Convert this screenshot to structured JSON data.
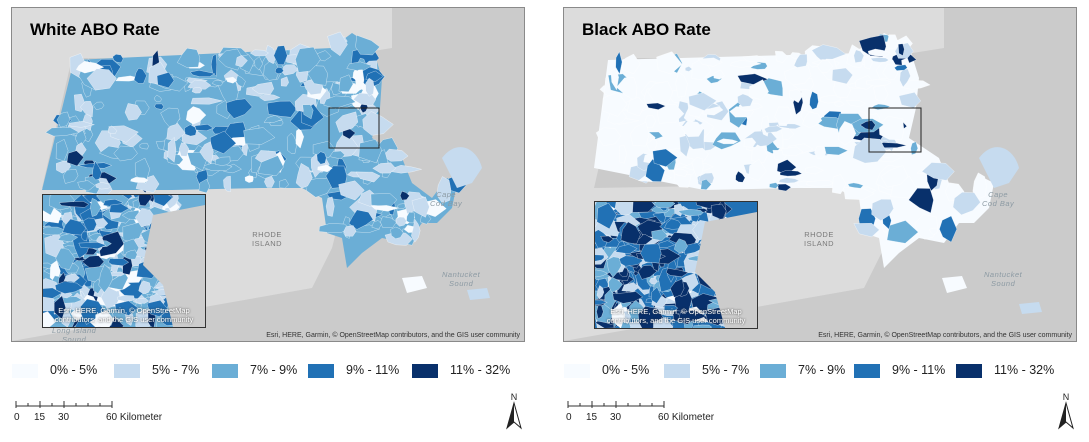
{
  "colors": {
    "c0": "#f7fbff",
    "c1": "#c6dbef",
    "c2": "#6baed6",
    "c3": "#2171b5",
    "c4": "#08306b",
    "background": "#d9d9d9",
    "water": "#c8c8c8"
  },
  "left_map": {
    "title": "White ABO Rate",
    "inset_attribution": "Esri, HERE, Garmin, © OpenStreetMap contributors, and the GIS user community",
    "attribution": "Esri, HERE, Garmin, © OpenStreetMap contributors, and the GIS user community",
    "labels": {
      "rhode_island": "RHODE\nISLAND",
      "cape_cod_bay": "Cape\nCod Bay",
      "nantucket_sound": "Nantucket\nSound",
      "long_island_sound": "Long Island\nSound"
    }
  },
  "right_map": {
    "title": "Black ABO Rate",
    "inset_attribution": "Esri, HERE, Garmin, © OpenStreetMap contributors, and the GIS user community",
    "attribution": "Esri, HERE, Garmin, © OpenStreetMap contributors, and the GIS user community",
    "labels": {
      "rhode_island": "RHODE\nISLAND",
      "cape_cod_bay": "Cape\nCod Bay",
      "nantucket_sound": "Nantucket\nSound"
    }
  },
  "legend": [
    {
      "label": "0% - 5%",
      "color": "#f7fbff"
    },
    {
      "label": "5% - 7%",
      "color": "#c6dbef"
    },
    {
      "label": "7% - 9%",
      "color": "#6baed6"
    },
    {
      "label": "9% - 11%",
      "color": "#2171b5"
    },
    {
      "label": "11% - 32%",
      "color": "#08306b"
    }
  ],
  "scale": {
    "ticks": [
      "0",
      "15",
      "30",
      "60 Kilometers"
    ]
  },
  "north_label": "N"
}
